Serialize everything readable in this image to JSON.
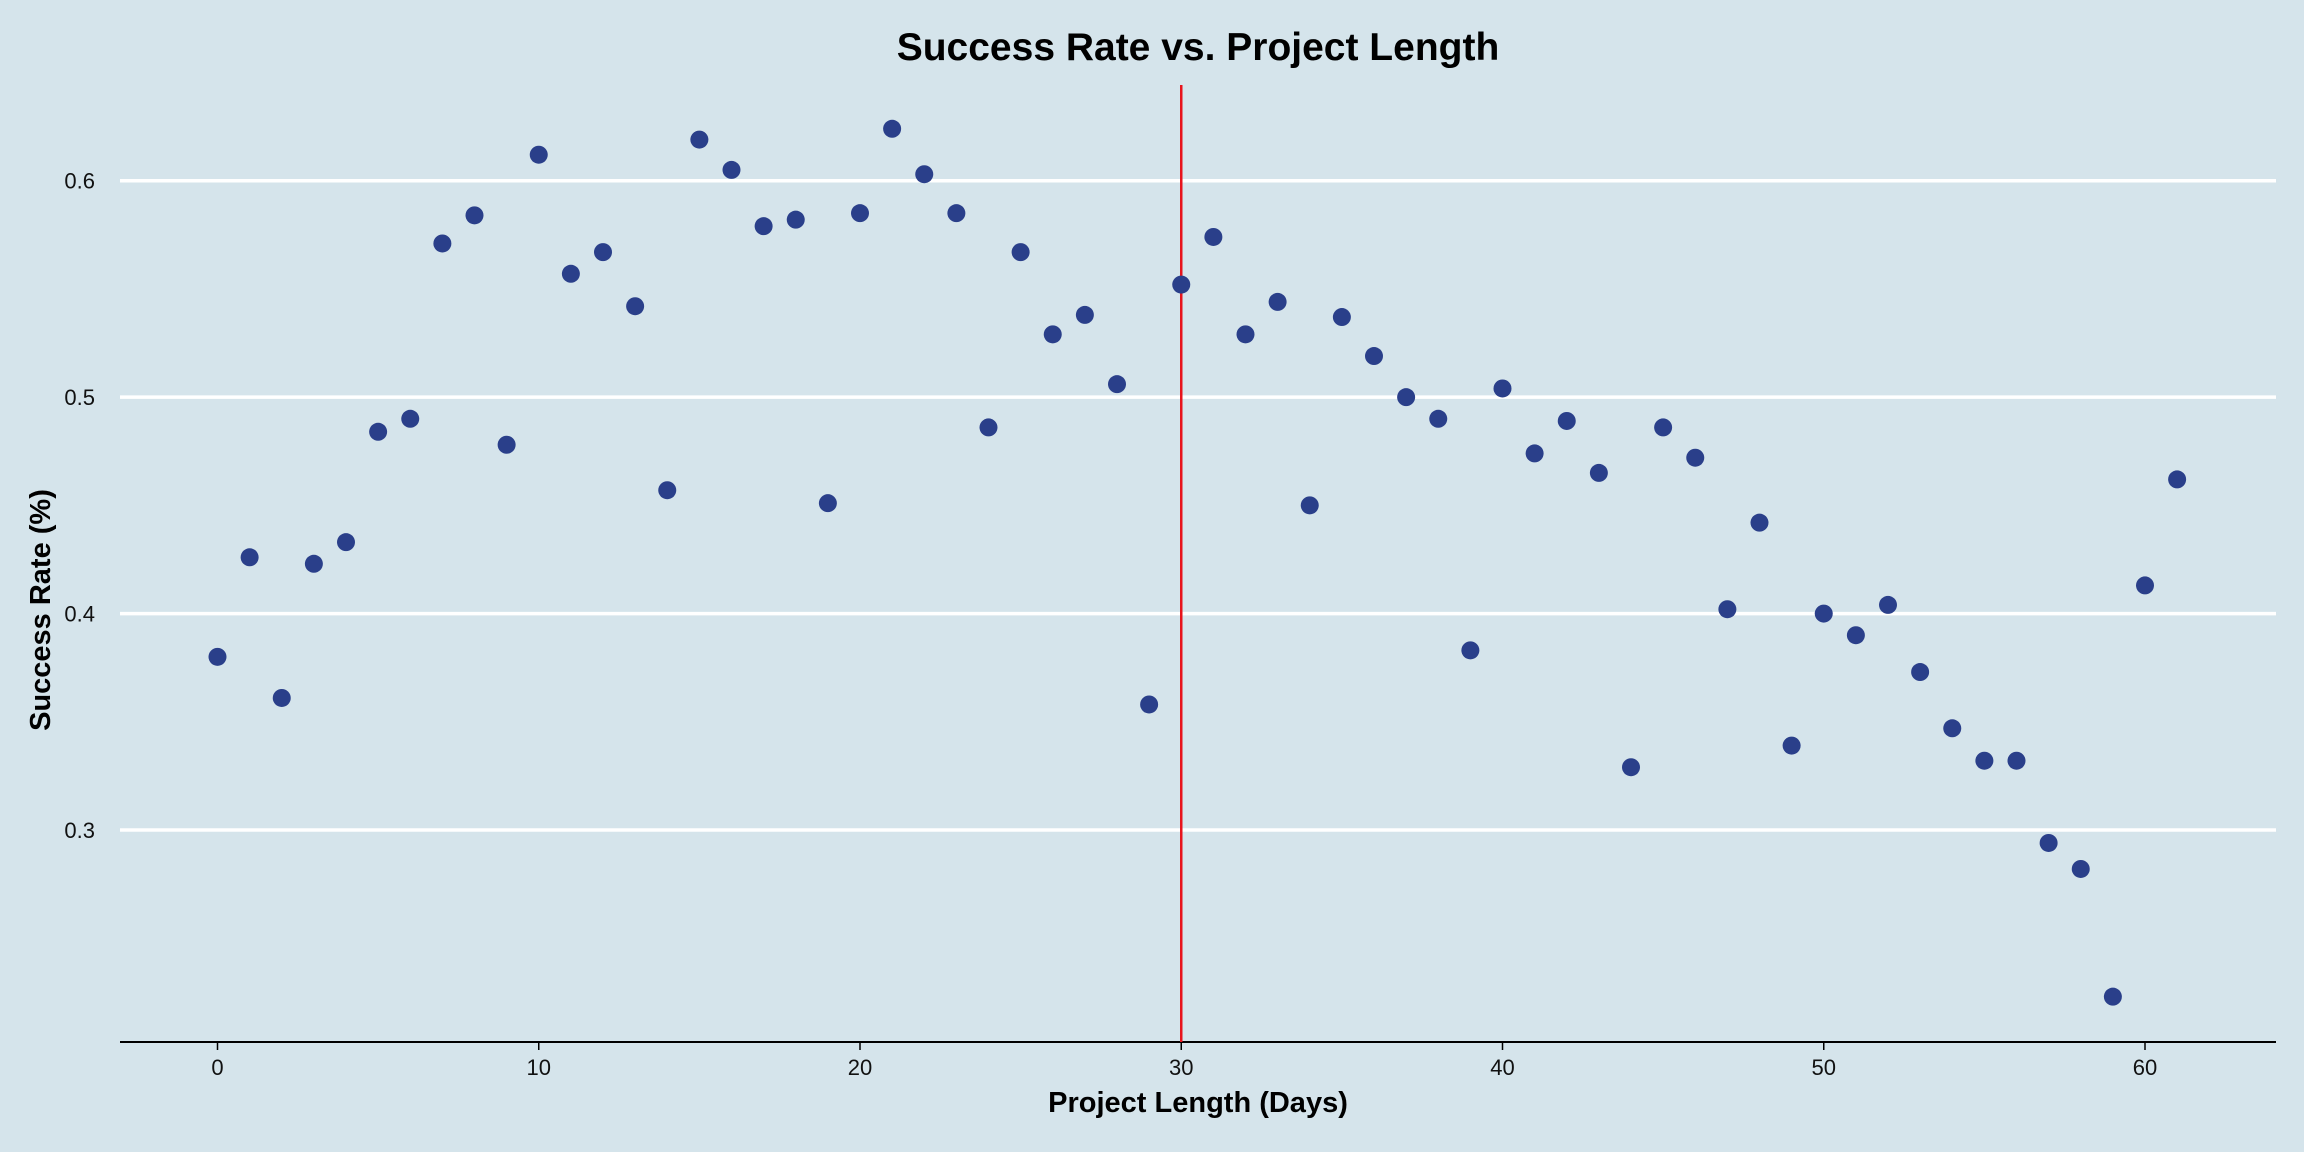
{
  "chart_data": {
    "type": "scatter",
    "title": "Success Rate vs. Project Length",
    "xlabel": "Project Length (Days)",
    "ylabel": "Success Rate (%)",
    "xlim": [
      -3,
      64
    ],
    "ylim": [
      0.205,
      0.645
    ],
    "xticks": [
      0,
      10,
      20,
      30,
      40,
      50,
      60
    ],
    "yticks": [
      0.3,
      0.4,
      0.5,
      0.6
    ],
    "xtick_labels": [
      "0",
      "10",
      "20",
      "30",
      "40",
      "50",
      "60"
    ],
    "ytick_labels": [
      "0.3",
      "0.4",
      "0.5",
      "0.6"
    ],
    "grid": "horizontal",
    "vline_x": 30,
    "colors": {
      "background": "#d5e4eb",
      "points": "#2a3f8a",
      "vline": "#e8141c",
      "grid": "#ffffff"
    },
    "x": [
      0,
      1,
      2,
      3,
      4,
      5,
      6,
      7,
      8,
      9,
      10,
      11,
      12,
      13,
      14,
      15,
      16,
      17,
      18,
      19,
      20,
      21,
      22,
      23,
      24,
      25,
      26,
      27,
      28,
      29,
      30,
      31,
      32,
      33,
      34,
      35,
      36,
      37,
      38,
      39,
      40,
      41,
      42,
      43,
      44,
      45,
      46,
      47,
      48,
      49,
      50,
      51,
      52,
      53,
      54,
      55,
      56,
      57,
      58,
      59,
      60,
      61
    ],
    "y": [
      0.38,
      0.426,
      0.361,
      0.423,
      0.433,
      0.484,
      0.49,
      0.571,
      0.584,
      0.478,
      0.612,
      0.557,
      0.567,
      0.542,
      0.457,
      0.619,
      0.605,
      0.579,
      0.582,
      0.451,
      0.585,
      0.624,
      0.603,
      0.585,
      0.486,
      0.567,
      0.529,
      0.538,
      0.506,
      0.358,
      0.552,
      0.574,
      0.529,
      0.544,
      0.45,
      0.537,
      0.519,
      0.5,
      0.49,
      0.383,
      0.504,
      0.474,
      0.489,
      0.465,
      0.329,
      0.486,
      0.472,
      0.402,
      0.442,
      0.339,
      0.4,
      0.39,
      0.404,
      0.373,
      0.347,
      0.332,
      0.332,
      0.294,
      0.282,
      0.223,
      0.413,
      0.462
    ]
  }
}
